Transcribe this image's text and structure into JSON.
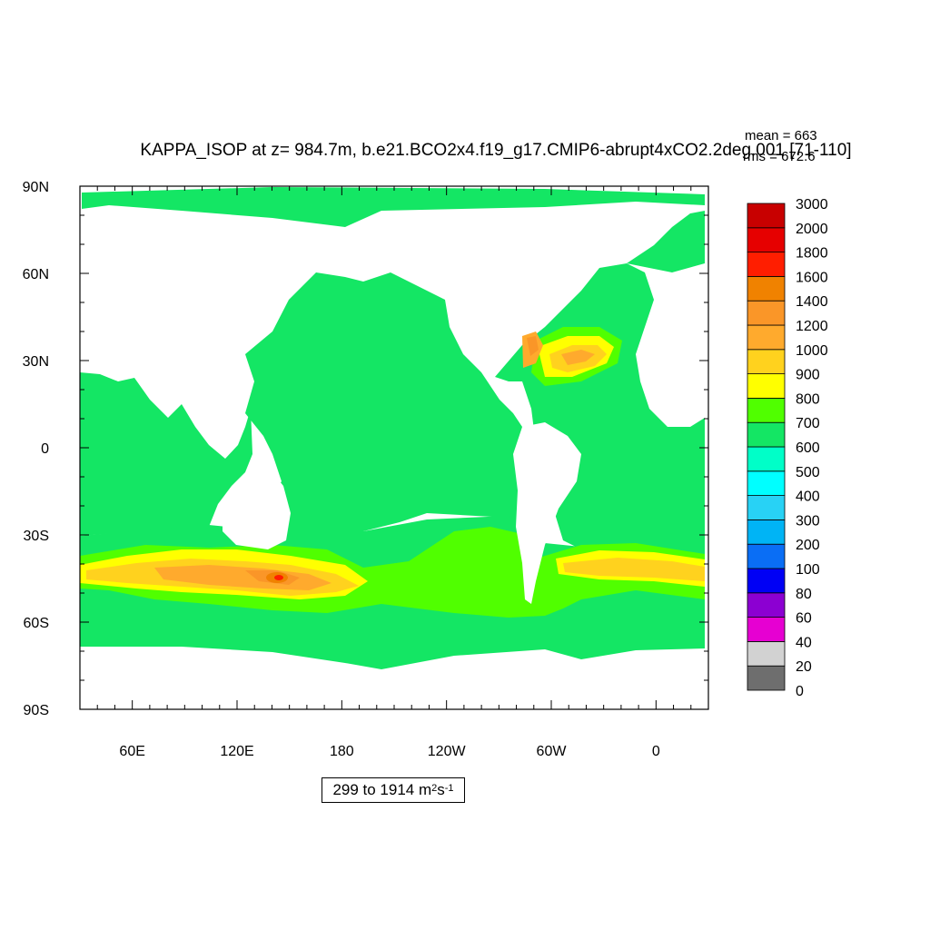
{
  "chart_data": {
    "type": "heatmap",
    "title": "KAPPA_ISOP at z= 984.7m, b.e21.BCO2x4.f19_g17.CMIP6-abrupt4xCO2.2deg.001 [71-110]",
    "stats": {
      "mean": "mean = 663",
      "rms": "rms = 672.6"
    },
    "x_ticks": [
      "60E",
      "120E",
      "180",
      "120W",
      "60W",
      "0"
    ],
    "y_ticks": [
      "90N",
      "60N",
      "30N",
      "0",
      "30S",
      "60S",
      "90S"
    ],
    "xlim": [
      30,
      390
    ],
    "ylim": [
      -90,
      90
    ],
    "colorbar": {
      "levels": [
        "0",
        "20",
        "40",
        "60",
        "80",
        "100",
        "200",
        "300",
        "400",
        "500",
        "600",
        "700",
        "800",
        "900",
        "1000",
        "1200",
        "1400",
        "1600",
        "1800",
        "2000",
        "3000"
      ],
      "colors": [
        "#6e6e6e",
        "#d2d2d2",
        "#e600d2",
        "#8c00d2",
        "#0000f5",
        "#0a6ef5",
        "#00b4f5",
        "#28d2f5",
        "#00ffff",
        "#00ffc8",
        "#14e664",
        "#50ff00",
        "#ffff00",
        "#ffd21e",
        "#ffaa2d",
        "#fa9628",
        "#f08200",
        "#ff1e00",
        "#e60000",
        "#c80000"
      ]
    },
    "range_label": {
      "text": "299 to 1914 m",
      "exp1": "2",
      "mid": " s",
      "exp2": "-1"
    },
    "regions": [
      {
        "name": "southern-ocean-band",
        "value": 700,
        "color": "#50ff00"
      },
      {
        "name": "acc-core",
        "value": 1000,
        "color": "#ffd21e"
      },
      {
        "name": "tasman-maximum",
        "value": 1800,
        "color": "#ff1e00"
      },
      {
        "name": "gulf-stream",
        "value": 1000,
        "color": "#ffaa2d"
      },
      {
        "name": "background-ocean",
        "value": 600,
        "color": "#14e664"
      }
    ]
  }
}
